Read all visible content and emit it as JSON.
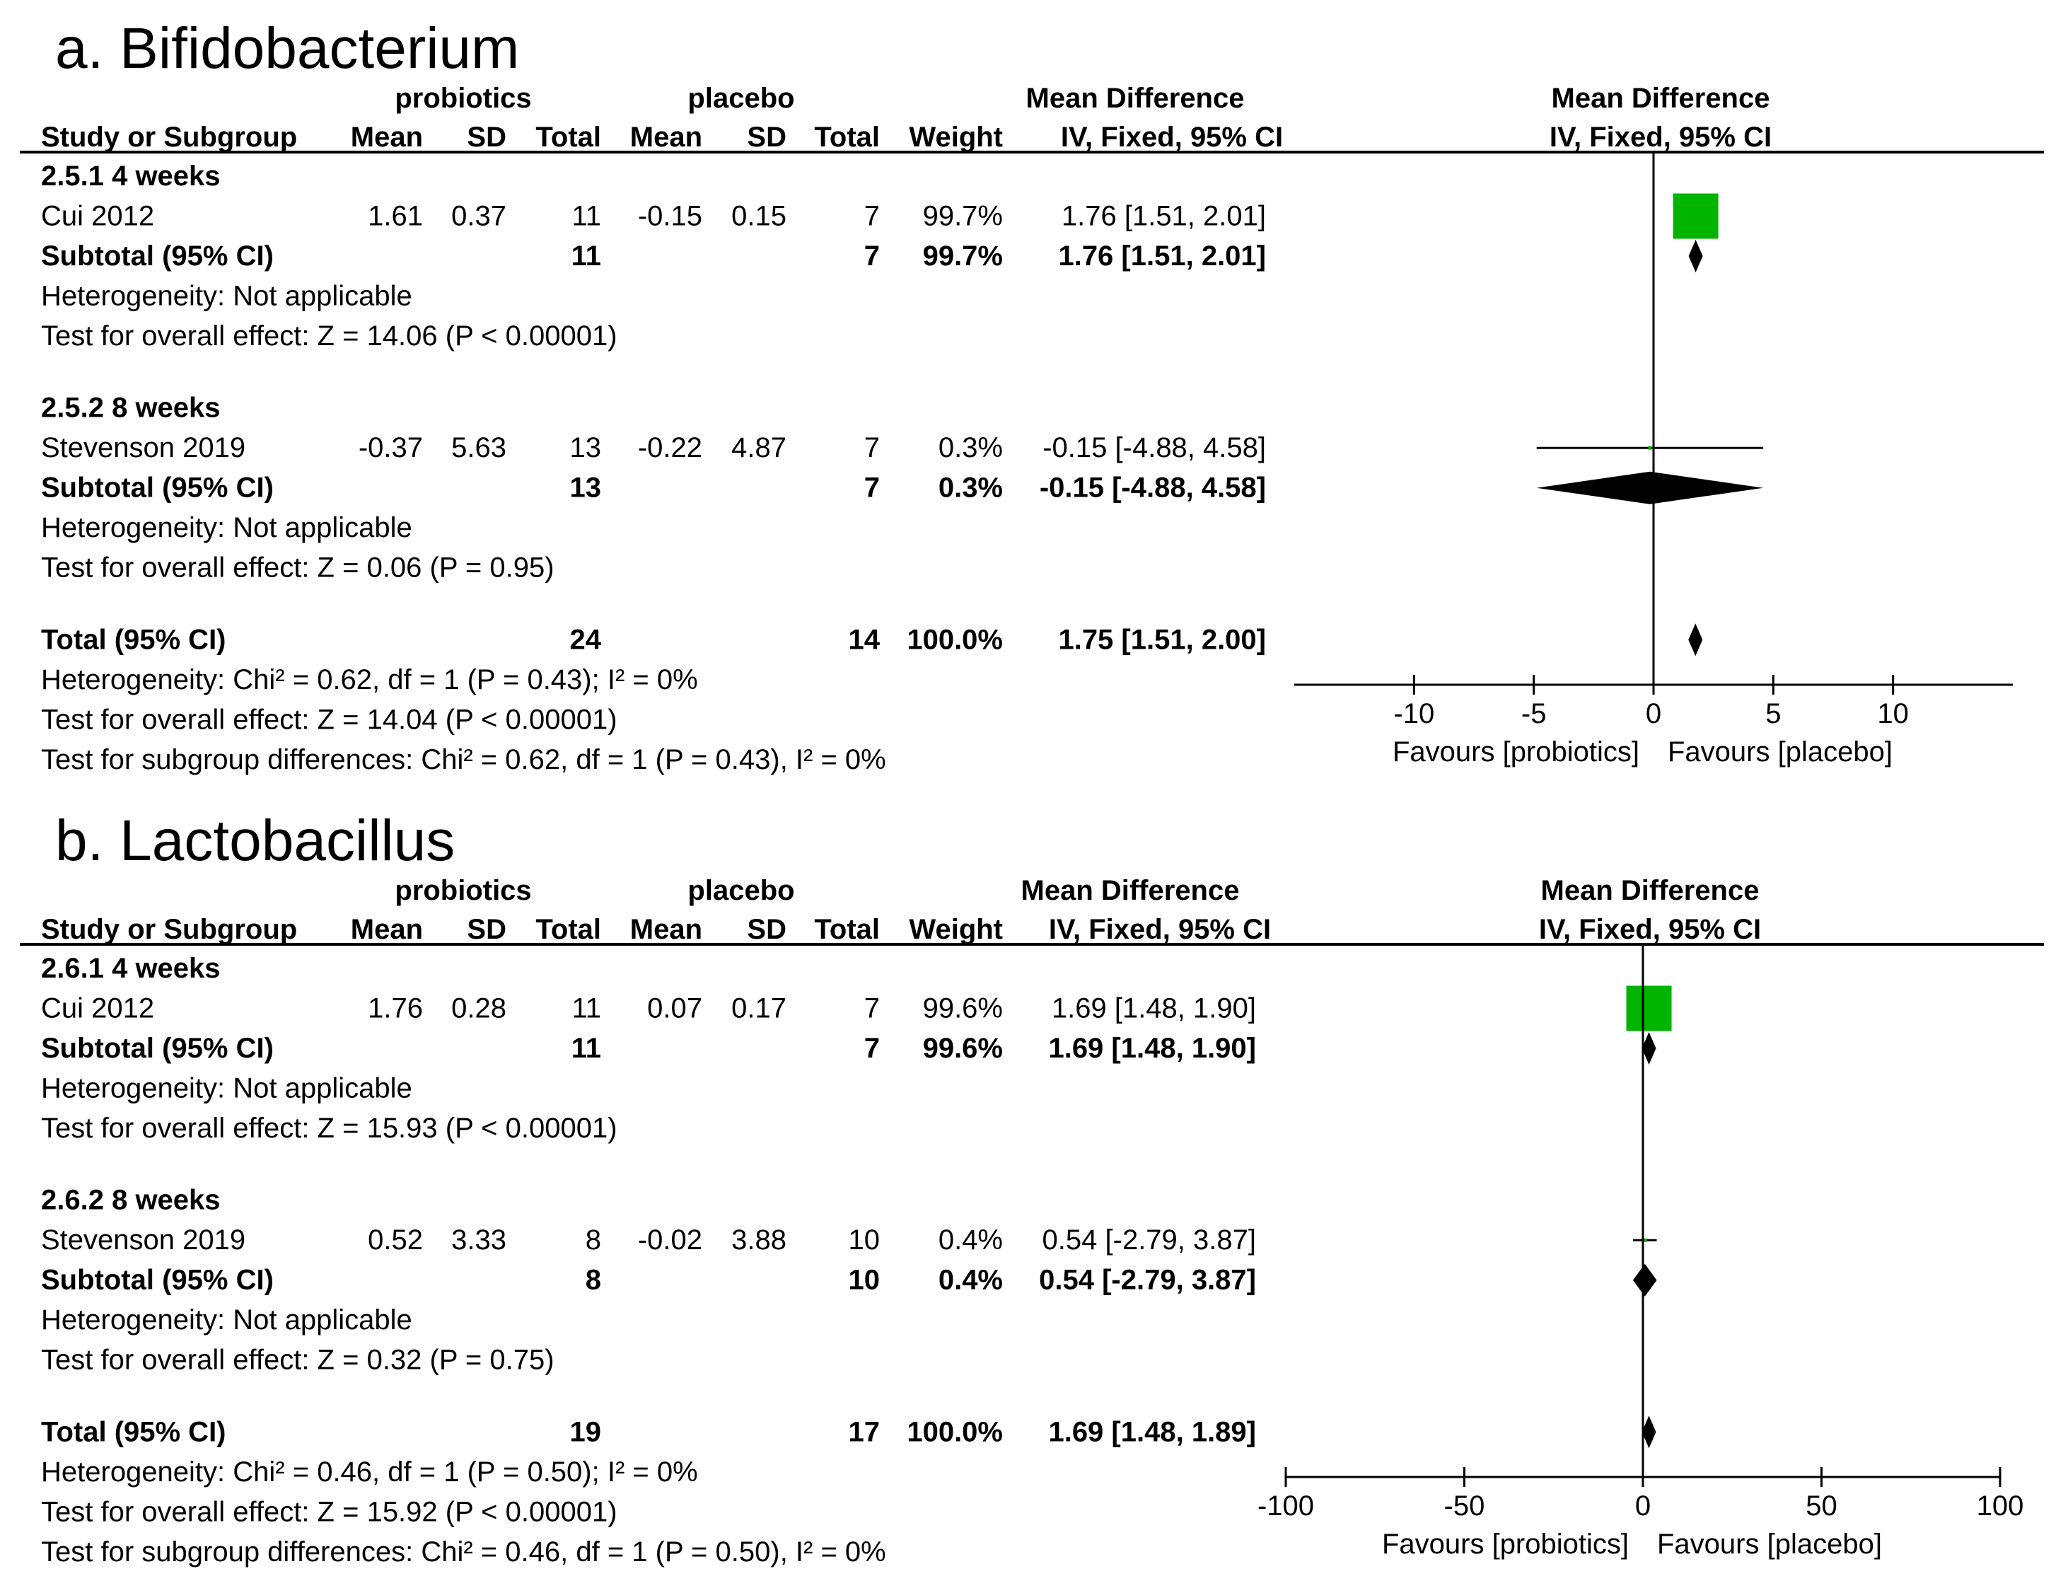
{
  "colors": {
    "box": "#00b400",
    "diamond": "#000000",
    "line": "#000000"
  },
  "headers": {
    "probiotics": "probiotics",
    "placebo": "placebo",
    "mean_difference": "Mean Difference",
    "study": "Study or Subgroup",
    "mean": "Mean",
    "sd": "SD",
    "total": "Total",
    "weight": "Weight",
    "method": "IV, Fixed, 95% CI"
  },
  "chart_data": [
    {
      "type": "forest",
      "title": "a. Bifidobacterium",
      "xlim": [
        -15,
        15
      ],
      "ticks": [
        -10,
        -5,
        0,
        5,
        10
      ],
      "tick_labels": [
        "-10",
        "-5",
        "0",
        "5",
        "10"
      ],
      "favours_left": "Favours [probiotics]",
      "favours_right": "Favours [placebo]",
      "rows": [
        {
          "kind": "group",
          "label": "2.5.1 4 weeks"
        },
        {
          "kind": "study",
          "label": "Cui 2012",
          "mean1": "1.61",
          "sd1": "0.37",
          "total1": "11",
          "mean2": "-0.15",
          "sd2": "0.15",
          "total2": "7",
          "weight": "99.7%",
          "ci": "1.76 [1.51, 2.01]",
          "est": 1.76,
          "lo": 1.51,
          "hi": 2.01,
          "w": 99.7
        },
        {
          "kind": "subtotal",
          "label": "Subtotal (95% CI)",
          "total1": "11",
          "total2": "7",
          "weight": "99.7%",
          "ci": "1.76 [1.51, 2.01]",
          "est": 1.76,
          "lo": 1.51,
          "hi": 2.01
        },
        {
          "kind": "note",
          "label": "Heterogeneity: Not applicable"
        },
        {
          "kind": "note",
          "label": "Test for overall effect: Z = 14.06 (P < 0.00001)"
        },
        {
          "kind": "gap"
        },
        {
          "kind": "group",
          "label": "2.5.2 8 weeks"
        },
        {
          "kind": "study",
          "label": "Stevenson  2019",
          "mean1": "-0.37",
          "sd1": "5.63",
          "total1": "13",
          "mean2": "-0.22",
          "sd2": "4.87",
          "total2": "7",
          "weight": "0.3%",
          "ci": "-0.15 [-4.88, 4.58]",
          "est": -0.15,
          "lo": -4.88,
          "hi": 4.58,
          "w": 0.3
        },
        {
          "kind": "subtotal",
          "label": "Subtotal (95% CI)",
          "total1": "13",
          "total2": "7",
          "weight": "0.3%",
          "ci": "-0.15 [-4.88, 4.58]",
          "est": -0.15,
          "lo": -4.88,
          "hi": 4.58
        },
        {
          "kind": "note",
          "label": "Heterogeneity: Not applicable"
        },
        {
          "kind": "note",
          "label": "Test for overall effect: Z = 0.06 (P = 0.95)"
        },
        {
          "kind": "gap"
        },
        {
          "kind": "total",
          "label": "Total (95% CI)",
          "total1": "24",
          "total2": "14",
          "weight": "100.0%",
          "ci": "1.75 [1.51, 2.00]",
          "est": 1.75,
          "lo": 1.51,
          "hi": 2.0
        },
        {
          "kind": "note",
          "label": "Heterogeneity: Chi² = 0.62, df = 1 (P = 0.43); I² = 0%"
        },
        {
          "kind": "note",
          "label": "Test for overall effect: Z = 14.04 (P < 0.00001)"
        },
        {
          "kind": "note",
          "label": "Test for subgroup differences: Chi² = 0.62, df = 1 (P = 0.43), I² = 0%"
        }
      ]
    },
    {
      "type": "forest",
      "title": "b. Lactobacillus",
      "xlim": [
        -100,
        100
      ],
      "ticks": [
        -100,
        -50,
        0,
        50,
        100
      ],
      "tick_labels": [
        "-100",
        "-50",
        "0",
        "50",
        "100"
      ],
      "favours_left": "Favours [probiotics]",
      "favours_right": "Favours [placebo]",
      "rows": [
        {
          "kind": "group",
          "label": "2.6.1 4 weeks"
        },
        {
          "kind": "study",
          "label": "Cui 2012",
          "mean1": "1.76",
          "sd1": "0.28",
          "total1": "11",
          "mean2": "0.07",
          "sd2": "0.17",
          "total2": "7",
          "weight": "99.6%",
          "ci": "1.69 [1.48, 1.90]",
          "est": 1.69,
          "lo": 1.48,
          "hi": 1.9,
          "w": 99.6
        },
        {
          "kind": "subtotal",
          "label": "Subtotal (95% CI)",
          "total1": "11",
          "total2": "7",
          "weight": "99.6%",
          "ci": "1.69 [1.48, 1.90]",
          "est": 1.69,
          "lo": 1.48,
          "hi": 1.9
        },
        {
          "kind": "note",
          "label": "Heterogeneity: Not applicable"
        },
        {
          "kind": "note",
          "label": "Test for overall effect: Z = 15.93 (P < 0.00001)"
        },
        {
          "kind": "gap"
        },
        {
          "kind": "group",
          "label": "2.6.2 8 weeks"
        },
        {
          "kind": "study",
          "label": "Stevenson  2019",
          "mean1": "0.52",
          "sd1": "3.33",
          "total1": "8",
          "mean2": "-0.02",
          "sd2": "3.88",
          "total2": "10",
          "weight": "0.4%",
          "ci": "0.54 [-2.79, 3.87]",
          "est": 0.54,
          "lo": -2.79,
          "hi": 3.87,
          "w": 0.4
        },
        {
          "kind": "subtotal",
          "label": "Subtotal (95% CI)",
          "total1": "8",
          "total2": "10",
          "weight": "0.4%",
          "ci": "0.54 [-2.79, 3.87]",
          "est": 0.54,
          "lo": -2.79,
          "hi": 3.87
        },
        {
          "kind": "note",
          "label": "Heterogeneity: Not applicable"
        },
        {
          "kind": "note",
          "label": "Test for overall effect: Z = 0.32 (P = 0.75)"
        },
        {
          "kind": "gap"
        },
        {
          "kind": "total",
          "label": "Total (95% CI)",
          "total1": "19",
          "total2": "17",
          "weight": "100.0%",
          "ci": "1.69 [1.48, 1.89]",
          "est": 1.69,
          "lo": 1.48,
          "hi": 1.89
        },
        {
          "kind": "note",
          "label": "Heterogeneity: Chi² = 0.46, df = 1 (P = 0.50); I² = 0%"
        },
        {
          "kind": "note",
          "label": "Test for overall effect: Z = 15.92 (P < 0.00001)"
        },
        {
          "kind": "note",
          "label": "Test for subgroup differences: Chi² = 0.46, df = 1 (P = 0.50), I² = 0%"
        }
      ]
    }
  ]
}
